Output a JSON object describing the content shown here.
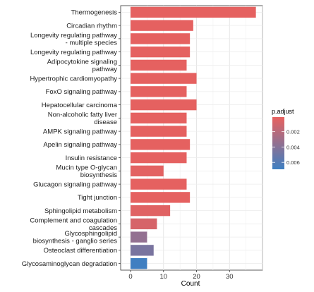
{
  "chart_data": {
    "type": "bar",
    "orientation": "horizontal",
    "xlabel": "Count",
    "ylabel": "",
    "xlim": [
      -3,
      40
    ],
    "xticks": [
      0,
      10,
      20,
      30
    ],
    "grid": true,
    "legend_position": "right",
    "categories": [
      "Thermogenesis",
      "Circadian rhythm",
      "Longevity regulating pathway\n- multiple species",
      "Longevity regulating pathway",
      "Adipocytokine signaling\npathway",
      "Hypertrophic cardiomyopathy",
      "FoxO signaling pathway",
      "Hepatocellular carcinoma",
      "Non-alcoholic fatty liver\ndisease",
      "AMPK signaling pathway",
      "Apelin signaling pathway",
      "Insulin resistance",
      "Mucin type O-glycan\nbiosynthesis",
      "Glucagon signaling pathway",
      "Tight junction",
      "Sphingolipid metabolism",
      "Complement and coagulation\ncascades",
      "Glycosphingolipid\nbiosynthesis - ganglio series",
      "Osteoclast differentiation",
      "Glycosaminoglycan degradation"
    ],
    "values": [
      38,
      19,
      18,
      18,
      17,
      20,
      17,
      20,
      17,
      17,
      18,
      17,
      10,
      17,
      18,
      12,
      8,
      5,
      7,
      5
    ],
    "p_adjust": [
      0.0002,
      0.0002,
      0.0002,
      0.0002,
      0.0002,
      0.0002,
      0.0002,
      0.0002,
      0.0002,
      0.0002,
      0.0002,
      0.0002,
      0.0003,
      0.0002,
      0.0002,
      0.0004,
      0.0008,
      0.0035,
      0.0045,
      0.0068
    ],
    "legend": {
      "title": "p.adjust",
      "ticks": [
        "0.002",
        "0.004",
        "0.006"
      ],
      "tick_values": [
        0.002,
        0.004,
        0.006
      ],
      "range": [
        0.0001,
        0.0069
      ],
      "color_low": "#e8615f",
      "color_high": "#3d7fc2"
    }
  }
}
